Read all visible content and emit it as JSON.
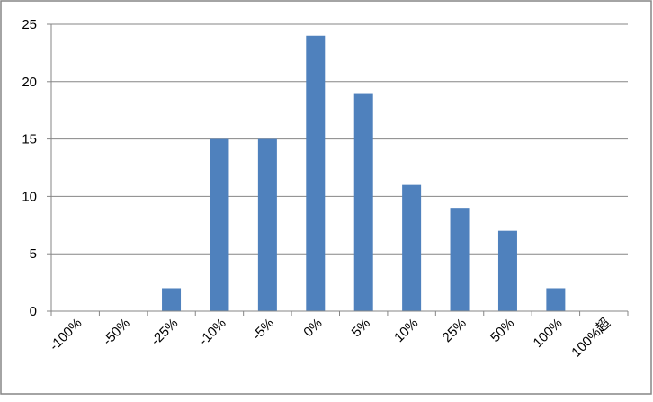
{
  "chart_data": {
    "type": "bar",
    "categories": [
      "-100%",
      "-50%",
      "-25%",
      "-10%",
      "-5%",
      "0%",
      "5%",
      "10%",
      "25%",
      "50%",
      "100%",
      "100%超"
    ],
    "values": [
      0,
      0,
      2,
      15,
      15,
      24,
      19,
      11,
      9,
      7,
      2,
      0
    ],
    "color": "#4f81bd",
    "ylim": [
      0,
      25
    ],
    "yticks": [
      0,
      5,
      10,
      15,
      20,
      25
    ],
    "grid": true
  }
}
